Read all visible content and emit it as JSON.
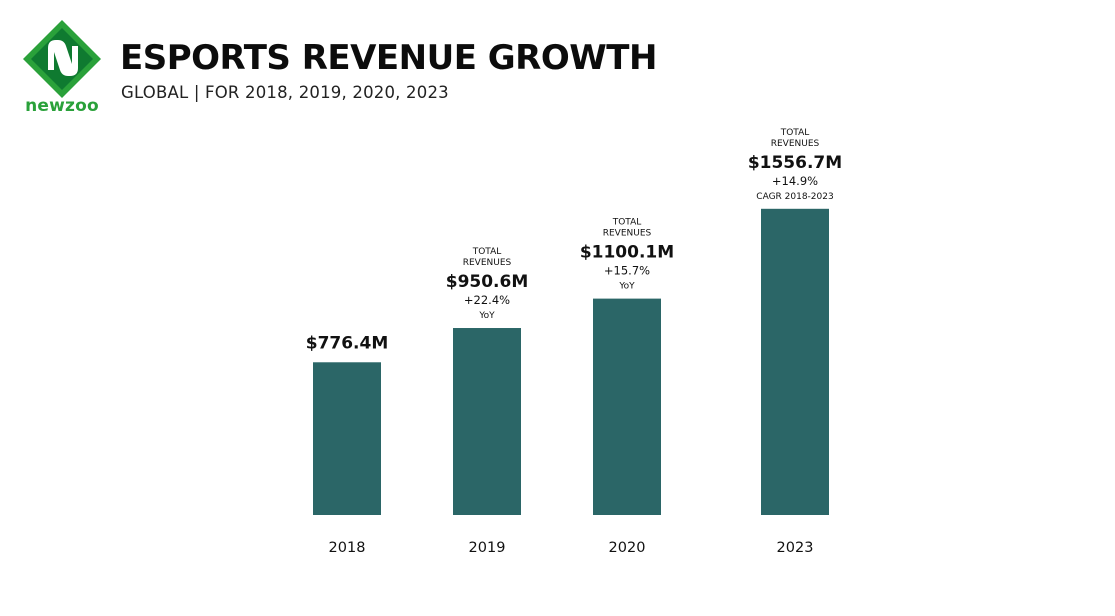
{
  "header": {
    "logo_text": "newzoo",
    "title": "ESPORTS REVENUE GROWTH",
    "subtitle": "GLOBAL | FOR 2018, 2019, 2020, 2023"
  },
  "colors": {
    "bar": "#2b6667",
    "logo_green": "#2aa13a",
    "logo_dark": "#0f7a30"
  },
  "chart_data": {
    "type": "bar",
    "categories": [
      "2018",
      "2019",
      "2020",
      "2023"
    ],
    "values": [
      776.4,
      950.6,
      1100.1,
      1556.7
    ],
    "value_labels": [
      "$776.4M",
      "$950.6M",
      "$1100.1M",
      "$1556.7M"
    ],
    "annotations": [
      {
        "header": [],
        "change": "",
        "note": ""
      },
      {
        "header": [
          "TOTAL",
          "REVENUES"
        ],
        "change": "+22.4%",
        "note": "YoY"
      },
      {
        "header": [
          "TOTAL",
          "REVENUES"
        ],
        "change": "+15.7%",
        "note": "YoY"
      },
      {
        "header": [
          "TOTAL",
          "REVENUES"
        ],
        "change": "+14.9%",
        "note": "CAGR 2018-2023"
      }
    ],
    "title": "ESPORTS REVENUE GROWTH",
    "subtitle": "GLOBAL | FOR 2018, 2019, 2020, 2023",
    "xlabel": "",
    "ylabel": "",
    "grid": false,
    "legend": "none"
  }
}
